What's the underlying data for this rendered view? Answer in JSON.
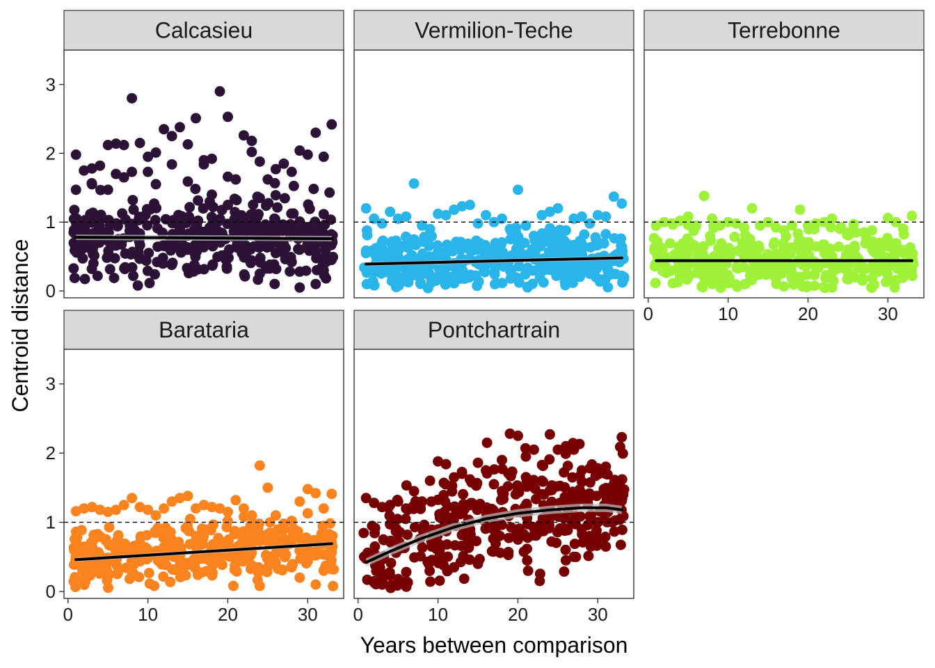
{
  "chart_data": {
    "type": "scatter",
    "layout": "facet-wrap",
    "xlabel": "Years between comparison",
    "ylabel": "Centroid distance",
    "xlim": [
      -0.5,
      34.5
    ],
    "ylim": [
      -0.1,
      3.5
    ],
    "x_ticks": [
      0,
      10,
      20,
      30
    ],
    "y_ticks": [
      0,
      1,
      2,
      3
    ],
    "reference_line": {
      "y": 1,
      "style": "dashed"
    },
    "grid": false,
    "legend": "none",
    "panels": [
      {
        "name": "Calcasieu",
        "color": "#2c1236",
        "trend": [
          [
            1,
            0.78
          ],
          [
            33,
            0.76
          ]
        ],
        "band": 0.04,
        "points": [
          [
            1,
            1.98
          ],
          [
            1,
            1.47
          ],
          [
            2,
            1.75
          ],
          [
            3,
            1.55
          ],
          [
            3,
            1.78
          ],
          [
            4,
            1.82
          ],
          [
            5,
            1.47
          ],
          [
            5,
            2.12
          ],
          [
            6,
            2.14
          ],
          [
            6,
            1.7
          ],
          [
            7,
            2.12
          ],
          [
            7,
            1.65
          ],
          [
            8,
            2.8
          ],
          [
            8,
            1.73
          ],
          [
            9,
            2.15
          ],
          [
            10,
            1.73
          ],
          [
            10,
            1.95
          ],
          [
            11,
            1.55
          ],
          [
            11,
            2.01
          ],
          [
            12,
            2.35
          ],
          [
            13,
            1.84
          ],
          [
            13,
            2.25
          ],
          [
            14,
            2.38
          ],
          [
            15,
            2.13
          ],
          [
            15,
            1.59
          ],
          [
            16,
            2.51
          ],
          [
            17,
            1.84
          ],
          [
            17,
            1.9
          ],
          [
            18,
            1.92
          ],
          [
            19,
            2.9
          ],
          [
            20,
            2.53
          ],
          [
            20,
            1.66
          ],
          [
            21,
            1.62
          ],
          [
            22,
            2.26
          ],
          [
            23,
            2.02
          ],
          [
            23,
            2.18
          ],
          [
            24,
            1.88
          ],
          [
            25,
            1.62
          ],
          [
            26,
            1.77
          ],
          [
            27,
            1.85
          ],
          [
            28,
            1.73
          ],
          [
            29,
            2.04
          ],
          [
            30,
            1.98
          ],
          [
            31,
            2.3
          ],
          [
            32,
            1.95
          ],
          [
            33,
            2.42
          ],
          [
            24,
            0.25
          ],
          [
            26,
            0.55
          ],
          [
            27,
            0.68
          ],
          [
            28,
            0.42
          ],
          [
            29,
            0.28
          ],
          [
            29,
            0.05
          ],
          [
            30,
            0.72
          ],
          [
            31,
            0.1
          ],
          [
            31,
            0.58
          ],
          [
            32,
            0.78
          ],
          [
            32,
            0.3
          ],
          [
            33,
            0.8
          ],
          [
            22,
            1.02
          ],
          [
            24,
            1.35
          ],
          [
            20,
            1.25
          ],
          [
            18,
            1.4
          ]
        ]
      },
      {
        "name": "Vermilion-Teche",
        "color": "#2ab5ea",
        "trend": [
          [
            1,
            0.39
          ],
          [
            33,
            0.48
          ]
        ],
        "band": 0.03,
        "points": [
          [
            1,
            1.2
          ],
          [
            2,
            1.05
          ],
          [
            3,
            0.98
          ],
          [
            4,
            1.15
          ],
          [
            5,
            1.05
          ],
          [
            6,
            1.08
          ],
          [
            7,
            1.56
          ],
          [
            8,
            0.95
          ],
          [
            9,
            0.9
          ],
          [
            10,
            1.12
          ],
          [
            11,
            1.1
          ],
          [
            12,
            1.18
          ],
          [
            13,
            1.23
          ],
          [
            14,
            1.25
          ],
          [
            15,
            0.98
          ],
          [
            16,
            1.1
          ],
          [
            17,
            1.0
          ],
          [
            18,
            1.05
          ],
          [
            19,
            0.9
          ],
          [
            20,
            1.47
          ],
          [
            21,
            0.95
          ],
          [
            22,
            0.8
          ],
          [
            23,
            1.1
          ],
          [
            24,
            1.15
          ],
          [
            25,
            1.2
          ],
          [
            26,
            0.88
          ],
          [
            27,
            1.05
          ],
          [
            28,
            1.08
          ],
          [
            29,
            0.98
          ],
          [
            30,
            1.1
          ],
          [
            31,
            1.08
          ],
          [
            32,
            1.37
          ],
          [
            33,
            1.27
          ],
          [
            28,
            0.6
          ],
          [
            29,
            0.25
          ],
          [
            30,
            0.7
          ],
          [
            31,
            0.18
          ],
          [
            32,
            0.5
          ],
          [
            33,
            0.22
          ]
        ]
      },
      {
        "name": "Terrebonne",
        "color": "#9ef23a",
        "trend": [
          [
            1,
            0.44
          ],
          [
            33,
            0.44
          ]
        ],
        "band": 0.02,
        "points": [
          [
            1,
            0.95
          ],
          [
            2,
            1.0
          ],
          [
            3,
            0.98
          ],
          [
            4,
            1.02
          ],
          [
            5,
            1.08
          ],
          [
            6,
            0.95
          ],
          [
            7,
            1.38
          ],
          [
            8,
            1.05
          ],
          [
            9,
            0.95
          ],
          [
            10,
            1.0
          ],
          [
            11,
            0.98
          ],
          [
            12,
            0.92
          ],
          [
            13,
            1.2
          ],
          [
            14,
            0.95
          ],
          [
            15,
            1.0
          ],
          [
            16,
            0.92
          ],
          [
            17,
            0.88
          ],
          [
            18,
            0.95
          ],
          [
            19,
            1.18
          ],
          [
            20,
            0.95
          ],
          [
            21,
            0.98
          ],
          [
            22,
            1.0
          ],
          [
            23,
            1.05
          ],
          [
            24,
            0.9
          ],
          [
            25,
            0.85
          ],
          [
            26,
            0.85
          ],
          [
            27,
            0.85
          ],
          [
            28,
            0.88
          ],
          [
            29,
            0.7
          ],
          [
            30,
            1.06
          ],
          [
            31,
            1.0
          ],
          [
            32,
            0.82
          ],
          [
            33,
            1.09
          ],
          [
            28,
            0.35
          ],
          [
            29,
            0.5
          ],
          [
            30,
            0.4
          ],
          [
            31,
            0.15
          ],
          [
            32,
            0.55
          ],
          [
            33,
            0.45
          ],
          [
            23,
            0.05
          ]
        ]
      },
      {
        "name": "Barataria",
        "color": "#f9831f",
        "trend": [
          [
            1,
            0.46
          ],
          [
            33,
            0.69
          ]
        ],
        "band": 0.03,
        "points": [
          [
            1,
            1.16
          ],
          [
            2,
            1.2
          ],
          [
            3,
            1.22
          ],
          [
            4,
            1.18
          ],
          [
            5,
            1.15
          ],
          [
            6,
            1.18
          ],
          [
            7,
            1.25
          ],
          [
            8,
            1.35
          ],
          [
            9,
            1.22
          ],
          [
            10,
            1.18
          ],
          [
            11,
            1.1
          ],
          [
            12,
            1.2
          ],
          [
            13,
            1.3
          ],
          [
            14,
            1.35
          ],
          [
            15,
            1.38
          ],
          [
            16,
            1.2
          ],
          [
            17,
            1.25
          ],
          [
            18,
            1.22
          ],
          [
            19,
            1.2
          ],
          [
            20,
            1.15
          ],
          [
            21,
            1.32
          ],
          [
            22,
            1.2
          ],
          [
            23,
            1.1
          ],
          [
            24,
            1.82
          ],
          [
            25,
            1.5
          ],
          [
            26,
            1.1
          ],
          [
            27,
            0.98
          ],
          [
            28,
            1.02
          ],
          [
            29,
            1.3
          ],
          [
            30,
            1.48
          ],
          [
            31,
            1.42
          ],
          [
            32,
            1.2
          ],
          [
            33,
            1.41
          ],
          [
            26,
            0.55
          ],
          [
            27,
            0.7
          ],
          [
            28,
            0.35
          ],
          [
            29,
            0.2
          ],
          [
            30,
            0.45
          ],
          [
            31,
            0.1
          ],
          [
            31,
            0.52
          ],
          [
            32,
            0.3
          ],
          [
            33,
            0.72
          ],
          [
            24,
            0.08
          ]
        ]
      },
      {
        "name": "Pontchartrain",
        "color": "#760002",
        "trend": [
          [
            1,
            0.42
          ],
          [
            4,
            0.58
          ],
          [
            8,
            0.77
          ],
          [
            12,
            0.93
          ],
          [
            16,
            1.05
          ],
          [
            20,
            1.13
          ],
          [
            24,
            1.18
          ],
          [
            28,
            1.21
          ],
          [
            31,
            1.21
          ],
          [
            33,
            1.18
          ]
        ],
        "band": 0.06,
        "points": [
          [
            1,
            1.35
          ],
          [
            2,
            1.28
          ],
          [
            3,
            1.22
          ],
          [
            4,
            1.25
          ],
          [
            5,
            1.3
          ],
          [
            6,
            1.2
          ],
          [
            7,
            1.45
          ],
          [
            8,
            1.3
          ],
          [
            9,
            1.6
          ],
          [
            10,
            1.88
          ],
          [
            11,
            1.84
          ],
          [
            12,
            1.65
          ],
          [
            13,
            1.7
          ],
          [
            14,
            1.62
          ],
          [
            15,
            1.86
          ],
          [
            16,
            1.75
          ],
          [
            17,
            1.55
          ],
          [
            18,
            1.9
          ],
          [
            19,
            2.28
          ],
          [
            20,
            2.25
          ],
          [
            21,
            1.95
          ],
          [
            22,
            2.05
          ],
          [
            23,
            1.6
          ],
          [
            24,
            2.27
          ],
          [
            25,
            2.05
          ],
          [
            26,
            2.1
          ],
          [
            27,
            2.05
          ],
          [
            28,
            1.75
          ],
          [
            29,
            1.78
          ],
          [
            30,
            1.78
          ],
          [
            31,
            1.7
          ],
          [
            32,
            1.55
          ],
          [
            33,
            2.23
          ],
          [
            26,
            0.45
          ],
          [
            27,
            0.5
          ],
          [
            28,
            0.9
          ],
          [
            29,
            0.75
          ],
          [
            30,
            1.0
          ],
          [
            31,
            0.65
          ],
          [
            32,
            1.3
          ],
          [
            12,
            0.35
          ],
          [
            15,
            0.4
          ],
          [
            20,
            0.75
          ],
          [
            3,
            0.1
          ],
          [
            6,
            0.15
          ]
        ]
      }
    ]
  }
}
